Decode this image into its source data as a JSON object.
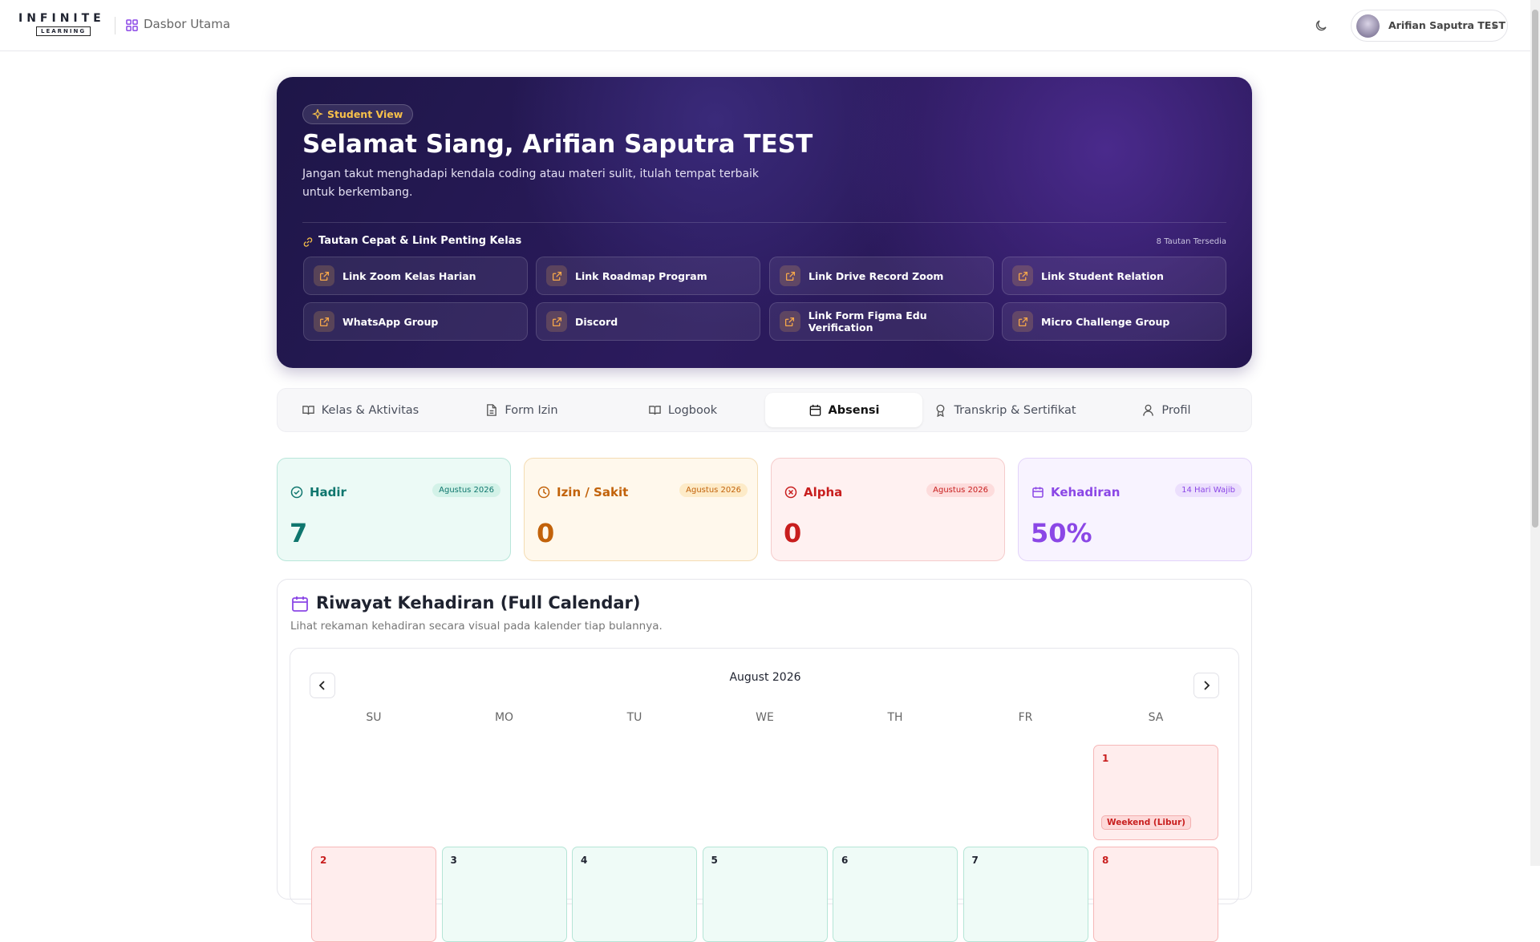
{
  "header": {
    "logo_top": "INFINITE",
    "logo_bottom": "LEARNING",
    "nav": "Dasbor Utama",
    "user": "Arifian Saputra TEST"
  },
  "hero": {
    "badge": "Student View",
    "greeting": "Selamat Siang, Arifian Saputra TEST",
    "subtitle": "Jangan takut menghadapi kendala coding atau materi sulit, itulah tempat terbaik untuk berkembang.",
    "links_title": "Tautan Cepat & Link Penting Kelas",
    "links_count": "8 Tautan Tersedia",
    "links": [
      "Link Zoom Kelas Harian",
      "Link Roadmap Program",
      "Link Drive Record Zoom",
      "Link Student Relation",
      "WhatsApp Group",
      "Discord",
      "Link Form Figma Edu Verification",
      "Micro Challenge Group"
    ]
  },
  "tabs": [
    {
      "label": "Kelas & Aktivitas",
      "active": false
    },
    {
      "label": "Form Izin",
      "active": false
    },
    {
      "label": "Logbook",
      "active": false
    },
    {
      "label": "Absensi",
      "active": true
    },
    {
      "label": "Transkrip & Sertifikat",
      "active": false
    },
    {
      "label": "Profil",
      "active": false
    }
  ],
  "stats": [
    {
      "label": "Hadir",
      "tag": "Agustus 2026",
      "value": "7",
      "color": "#0f766e",
      "bg": "#ecfaf6",
      "border": "#b9e6da",
      "tagbg": "#d3f2e8"
    },
    {
      "label": "Izin / Sakit",
      "tag": "Agustus 2026",
      "value": "0",
      "color": "#c2620a",
      "bg": "#fff8ec",
      "border": "#f4dcb3",
      "tagbg": "#fdebc8"
    },
    {
      "label": "Alpha",
      "tag": "Agustus 2026",
      "value": "0",
      "color": "#c81e1e",
      "bg": "#fff1f1",
      "border": "#f5cccc",
      "tagbg": "#fddcdc"
    },
    {
      "label": "Kehadiran",
      "tag": "14 Hari Wajib",
      "value": "50%",
      "color": "#8b47e6",
      "bg": "#f8f3ff",
      "border": "#e3d4fa",
      "tagbg": "#ecdffd"
    }
  ],
  "calendar": {
    "title": "Riwayat Kehadiran (Full Calendar)",
    "subtitle": "Lihat rekaman kehadiran secara visual pada kalender tiap bulannya.",
    "month": "August 2026",
    "weekdays": [
      "SU",
      "MO",
      "TU",
      "WE",
      "TH",
      "FR",
      "SA"
    ],
    "first_weekday": 6,
    "days": [
      {
        "day": "1",
        "note": "Weekend (Libur)",
        "status": "weekend"
      },
      {
        "day": "2",
        "status": "weekend"
      },
      {
        "day": "3",
        "status": "present"
      },
      {
        "day": "4",
        "status": "present"
      },
      {
        "day": "5",
        "status": "present"
      },
      {
        "day": "6",
        "status": "present"
      },
      {
        "day": "7",
        "status": "present"
      },
      {
        "day": "8",
        "status": "weekend"
      }
    ]
  }
}
